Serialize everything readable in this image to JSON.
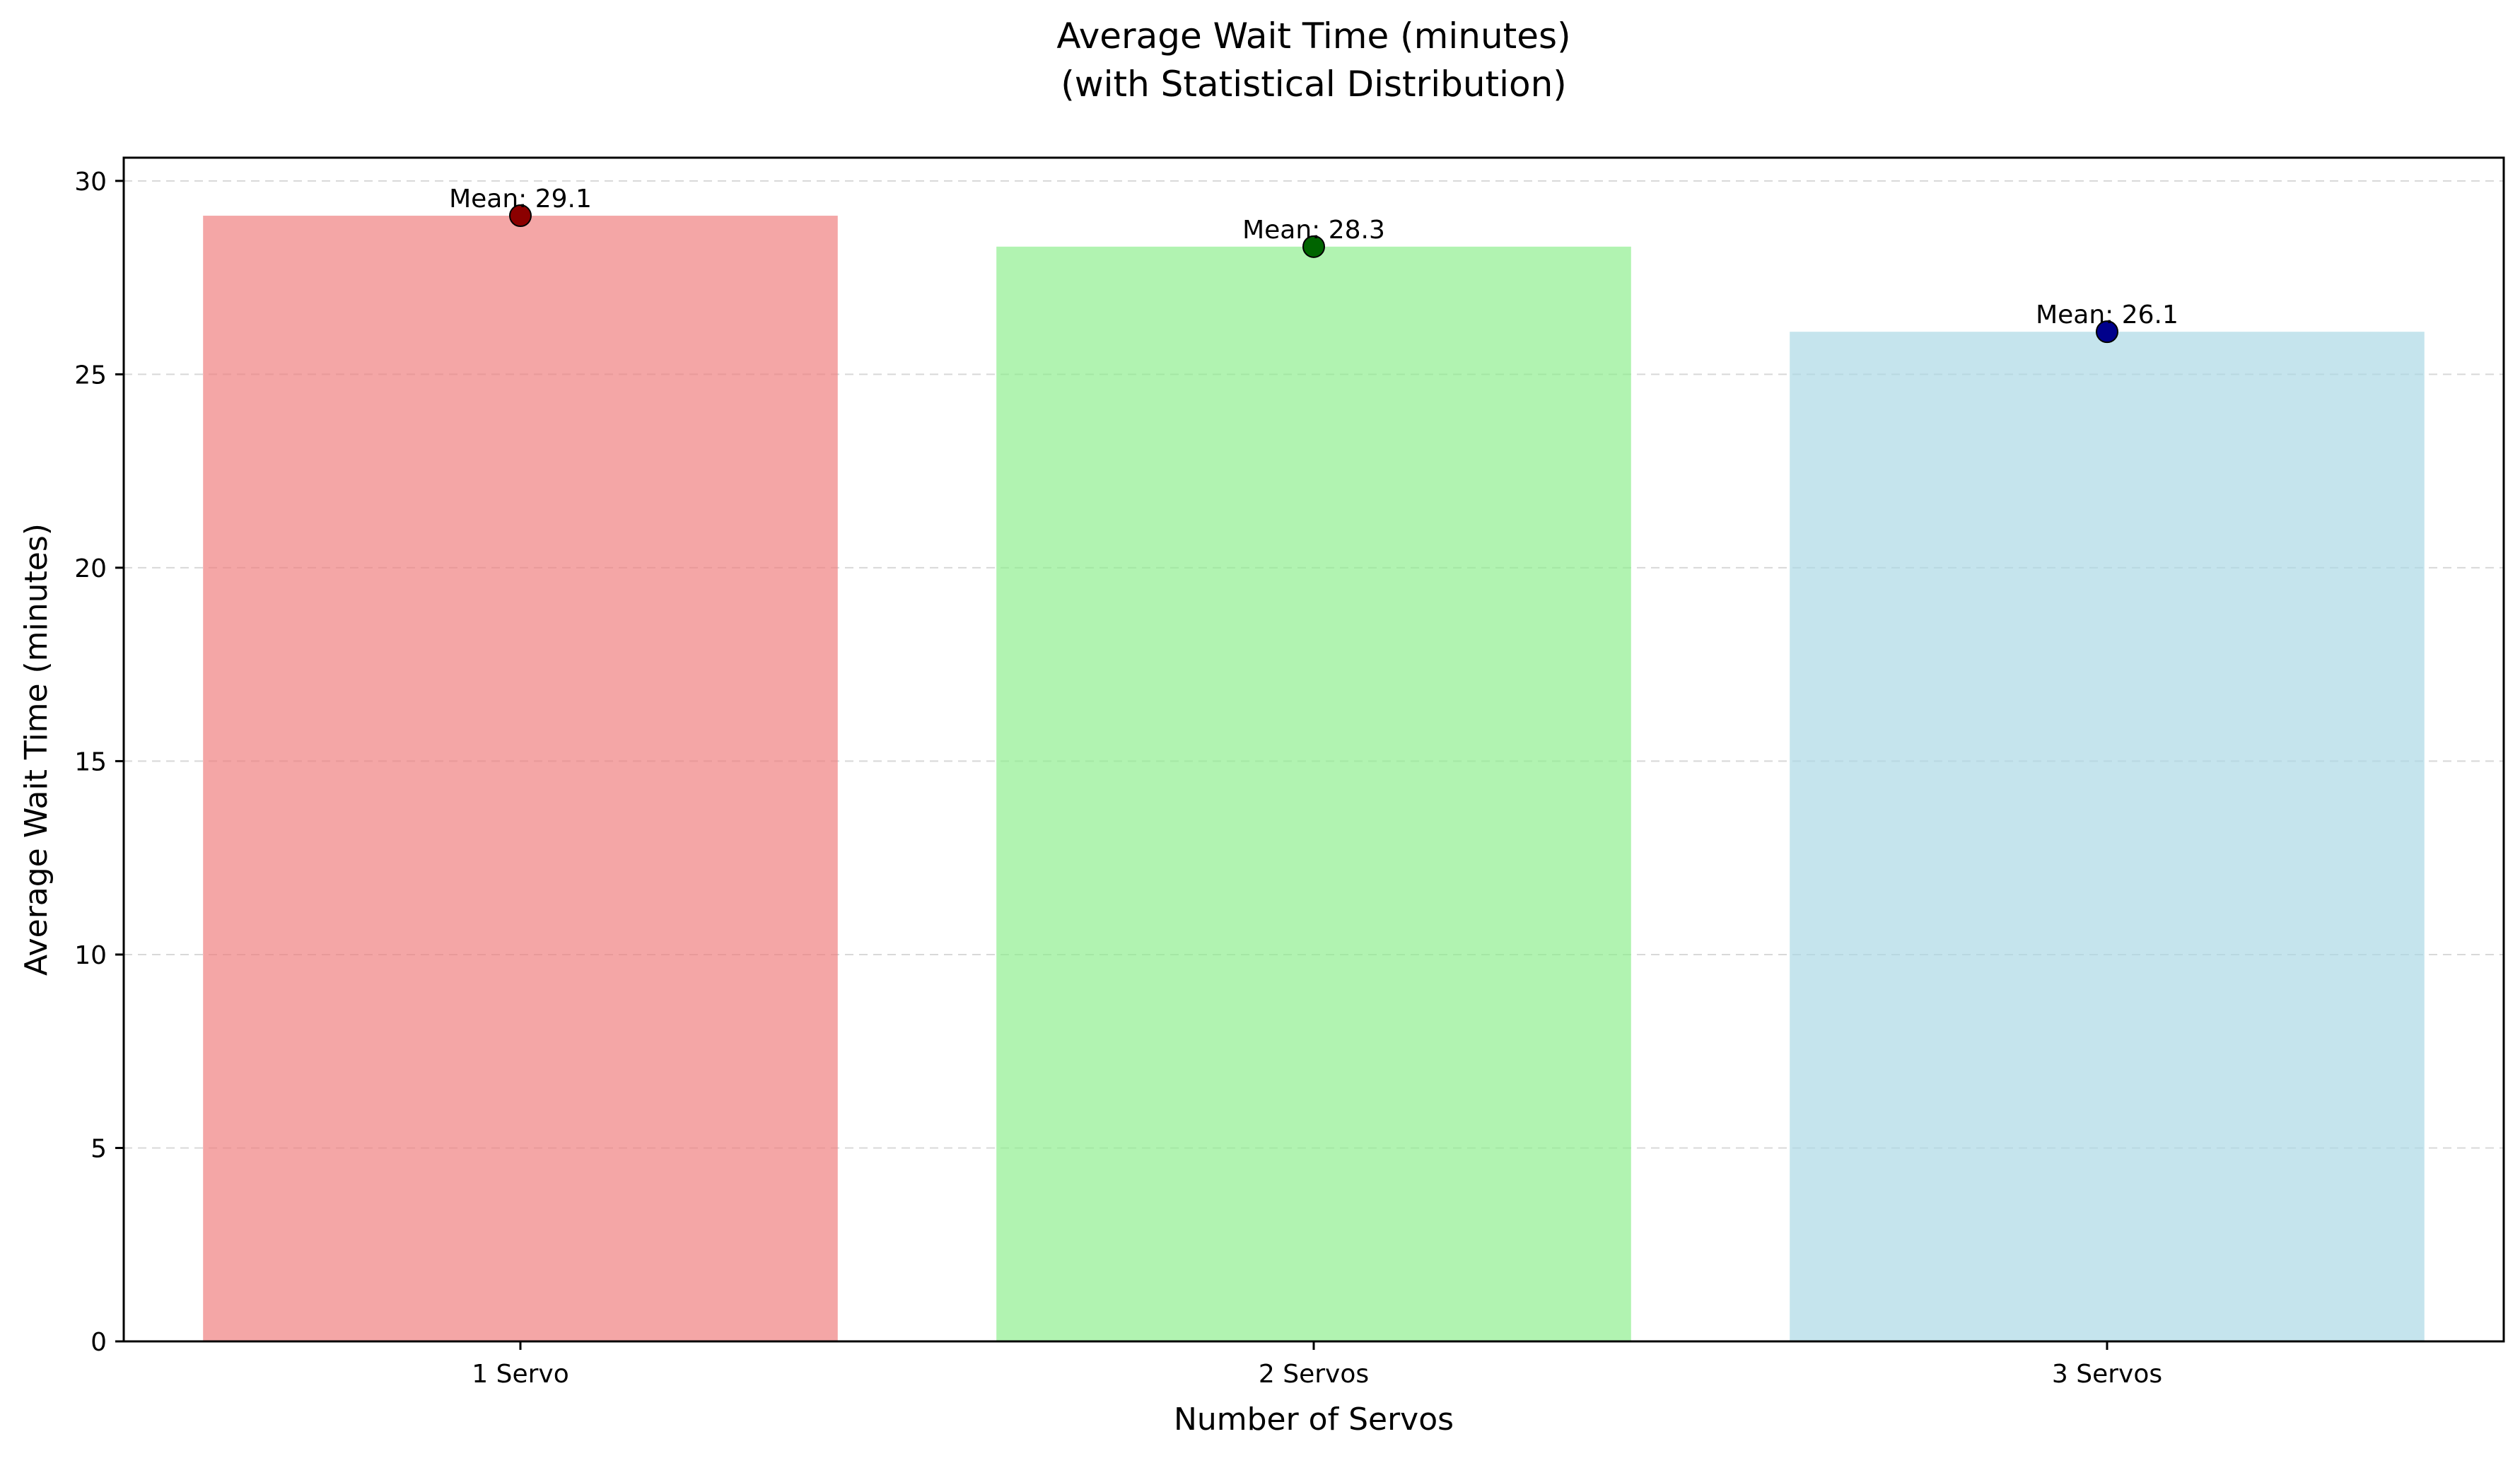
{
  "chart_data": {
    "type": "bar",
    "title_line1": "Average Wait Time (minutes)",
    "title_line2": "(with Statistical Distribution)",
    "xlabel": "Number of Servos",
    "ylabel": "Average Wait Time (minutes)",
    "categories": [
      "1 Servo",
      "2 Servos",
      "3 Servos"
    ],
    "values": [
      29.1,
      28.3,
      26.1
    ],
    "data_labels": [
      "Mean: 29.1",
      "Mean: 28.3",
      "Mean: 26.1"
    ],
    "bar_colors": [
      "#f08080",
      "#90ee90",
      "#add8e6"
    ],
    "marker_colors": [
      "#8b0000",
      "#006400",
      "#00008b"
    ],
    "ylim": [
      0,
      30.6
    ],
    "yticks": [
      0,
      5,
      10,
      15,
      20,
      25,
      30
    ],
    "grid": "y-dashed",
    "legend": "none"
  }
}
